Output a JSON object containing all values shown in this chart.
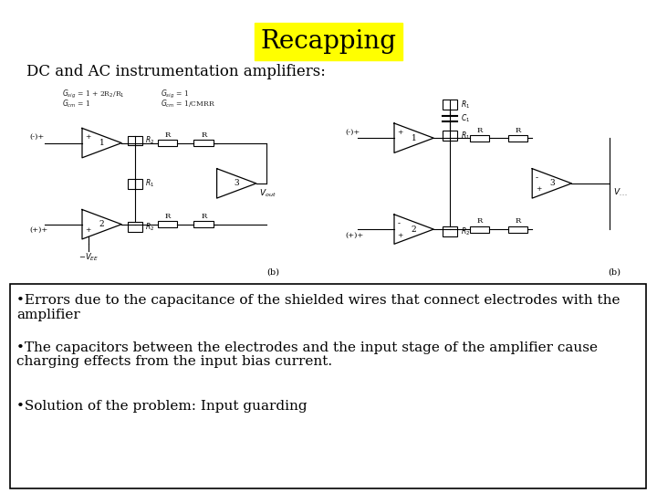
{
  "background_color": "#ffffff",
  "title": "Recapping",
  "title_bg_color": "#ffff00",
  "title_fontsize": 20,
  "subtitle": "DC and AC instrumentation amplifiers:",
  "subtitle_fontsize": 12,
  "bullet1_line1": "•Errors due to the capacitance of the shielded wires that connect electrodes with the",
  "bullet1_line2": "amplifier",
  "bullet2_line1": "•The capacitors between the electrodes and the input stage of the amplifier cause",
  "bullet2_line2": "charging effects from the input bias current.",
  "bullet3": "•Solution of the problem: Input guarding",
  "bullet_fontsize": 11
}
